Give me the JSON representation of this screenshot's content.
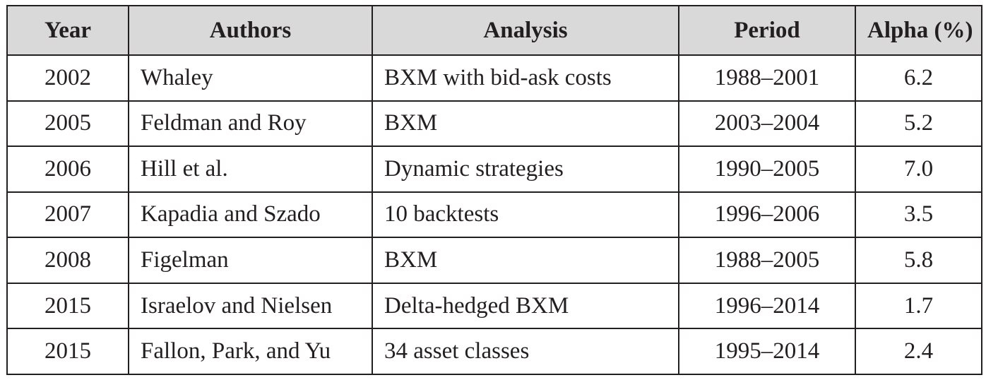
{
  "table": {
    "headers": [
      "Year",
      "Authors",
      "Analysis",
      "Period",
      "Alpha (%)"
    ],
    "rows": [
      [
        "2002",
        "Whaley",
        "BXM with bid-ask costs",
        "1988–2001",
        "6.2"
      ],
      [
        "2005",
        "Feldman and Roy",
        "BXM",
        "2003–2004",
        "5.2"
      ],
      [
        "2006",
        "Hill et al.",
        "Dynamic strategies",
        "1990–2005",
        "7.0"
      ],
      [
        "2007",
        "Kapadia and Szado",
        "10 backtests",
        "1996–2006",
        "3.5"
      ],
      [
        "2008",
        "Figelman",
        "BXM",
        "1988–2005",
        "5.8"
      ],
      [
        "2015",
        "Israelov and Nielsen",
        "Delta-hedged BXM",
        "1996–2014",
        "1.7"
      ],
      [
        "2015",
        "Fallon, Park, and Yu",
        "34 asset classes",
        "1995–2014",
        "2.4"
      ]
    ]
  },
  "colors": {
    "header_bg": "#d9d9d9",
    "border": "#231f20",
    "text": "#231f20"
  }
}
